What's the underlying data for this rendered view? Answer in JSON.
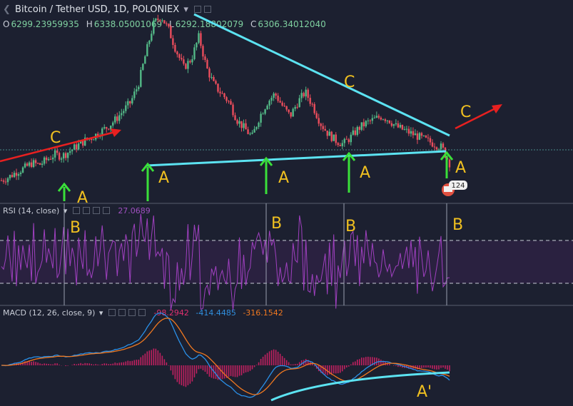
{
  "header": {
    "title": "Bitcoin / Tether USD, 1D, POLONIEX",
    "ohlc": [
      {
        "k": "O",
        "v": "6299.23959935"
      },
      {
        "k": "H",
        "v": "6338.05001069"
      },
      {
        "k": "L",
        "v": "6292.18802079"
      },
      {
        "k": "C",
        "v": "6306.34012040"
      }
    ]
  },
  "rsi": {
    "title": "RSI (14, close)",
    "value": "27.0689"
  },
  "macd": {
    "title": "MACD (12, 26, close, 9)",
    "v1": "-98.2942",
    "v2": "-414.4485",
    "v3": "-316.1542"
  },
  "annotations": {
    "a": "A",
    "b": "B",
    "c": "C",
    "a_prime": "A'",
    "event_badge": "124"
  },
  "colors": {
    "background": "#1c2030",
    "up": "#53b987",
    "down": "#eb4d5c",
    "trendline": "#5ce3f2",
    "arrow_green": "#3ae03a",
    "arrow_red": "#e82020",
    "label_yellow": "#f0c020",
    "rsi_line": "#a040c0",
    "macd_line": "#2a90e8",
    "signal_line": "#f07820",
    "hist": "#c02060"
  },
  "chart_data": [
    {
      "type": "candlestick",
      "title": "Bitcoin / Tether USD, 1D, POLONIEX",
      "series": [
        {
          "name": "BTC/USDT",
          "close_path": [
            0.05,
            0.07,
            0.1,
            0.12,
            0.15,
            0.14,
            0.17,
            0.2,
            0.19,
            0.22,
            0.25,
            0.28,
            0.3,
            0.33,
            0.36,
            0.4,
            0.45,
            0.5,
            0.6,
            0.78,
            0.95,
            1.0,
            0.92,
            0.8,
            0.7,
            0.75,
            0.88,
            0.7,
            0.6,
            0.55,
            0.5,
            0.4,
            0.35,
            0.3,
            0.42,
            0.5,
            0.55,
            0.48,
            0.42,
            0.5,
            0.56,
            0.48,
            0.38,
            0.32,
            0.28,
            0.26,
            0.3,
            0.35,
            0.38,
            0.4,
            0.42,
            0.4,
            0.36,
            0.34,
            0.32,
            0.3,
            0.28,
            0.26,
            0.24,
            0.15
          ]
        }
      ]
    },
    {
      "type": "line",
      "title": "RSI (14, close)",
      "series": [
        {
          "name": "RSI",
          "last": 27.0689
        }
      ]
    },
    {
      "type": "line",
      "title": "MACD (12, 26, close, 9)",
      "series": [
        {
          "name": "histogram",
          "last": -98.2942
        },
        {
          "name": "MACD",
          "last": -414.4485
        },
        {
          "name": "signal",
          "last": -316.1542
        }
      ]
    }
  ]
}
